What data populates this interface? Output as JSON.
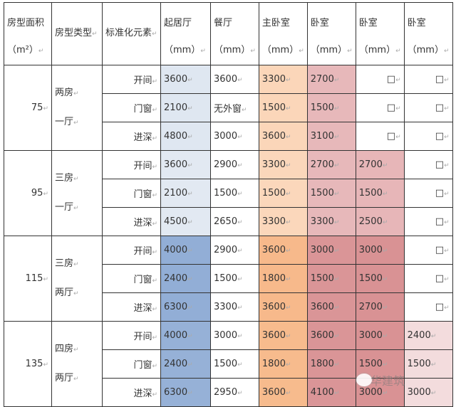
{
  "headers": {
    "area": "房型面积",
    "area_unit": "（m²）",
    "type": "房型类型",
    "element": "标准化元素",
    "rooms": [
      {
        "name": "起居厅",
        "unit": "（mm）"
      },
      {
        "name": "餐厅",
        "unit": "（mm）"
      },
      {
        "name": "主卧室",
        "unit": "（mm）"
      },
      {
        "name": "卧室",
        "unit": "（mm）"
      },
      {
        "name": "卧室",
        "unit": "（mm）"
      },
      {
        "name": "卧室",
        "unit": "（mm）"
      }
    ]
  },
  "groups": [
    {
      "area": "75",
      "type1": "两房",
      "type2": "一厅",
      "rows": [
        {
          "element": "开间",
          "values": [
            "3600",
            "3600",
            "3300",
            "2700",
            "□",
            "□"
          ]
        },
        {
          "element": "门窗",
          "values": [
            "2100",
            "无外窗",
            "1500",
            "1500",
            "□",
            "□"
          ]
        },
        {
          "element": "进深",
          "values": [
            "4800",
            "3000",
            "3600",
            "3100",
            "□",
            "□"
          ]
        }
      ]
    },
    {
      "area": "95",
      "type1": "三房",
      "type2": "一厅",
      "rows": [
        {
          "element": "开间",
          "values": [
            "3600",
            "2900",
            "3300",
            "2700",
            "2700",
            "□"
          ]
        },
        {
          "element": "门窗",
          "values": [
            "2100",
            "1500",
            "1500",
            "1500",
            "1500",
            "□"
          ]
        },
        {
          "element": "进深",
          "values": [
            "4500",
            "2650",
            "3300",
            "3300",
            "2500",
            "□"
          ]
        }
      ]
    },
    {
      "area": "115",
      "type1": "三房",
      "type2": "两厅",
      "rows": [
        {
          "element": "开间",
          "values": [
            "4000",
            "2900",
            "3600",
            "3000",
            "3000",
            "□"
          ]
        },
        {
          "element": "门窗",
          "values": [
            "2400",
            "1500",
            "1800",
            "1500",
            "1500",
            "□"
          ]
        },
        {
          "element": "进深",
          "values": [
            "6300",
            "3300",
            "3600",
            "3600",
            "2700",
            "□"
          ]
        }
      ]
    },
    {
      "area": "135",
      "type1": "四房",
      "type2": "两厅",
      "rows": [
        {
          "element": "开间",
          "values": [
            "4000",
            "3000",
            "3600",
            "3600",
            "3000",
            "2400"
          ]
        },
        {
          "element": "门窗",
          "values": [
            "2400",
            "1500",
            "1800",
            "1800",
            "1500",
            "1500"
          ]
        },
        {
          "element": "进深",
          "values": [
            "6300",
            "2950",
            "3600",
            "4100",
            "3000",
            "3000"
          ]
        }
      ]
    }
  ],
  "watermark": "华建筑"
}
